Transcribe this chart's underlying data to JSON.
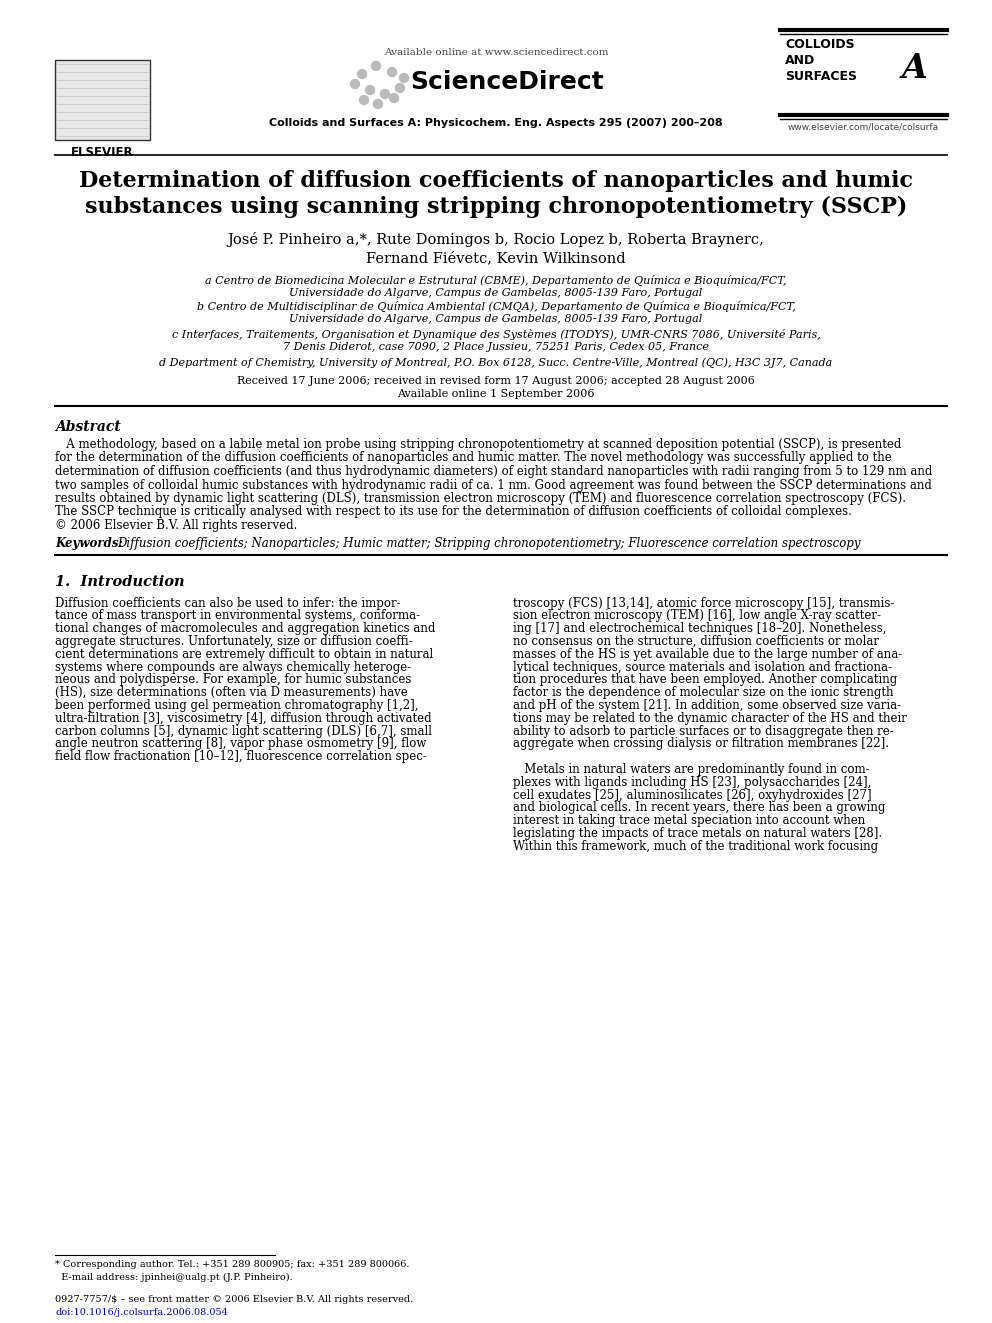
{
  "page_bg": "#ffffff",
  "header_available_online": "Available online at www.sciencedirect.com",
  "header_journal_line": "Colloids and Surfaces A: Physicochem. Eng. Aspects 295 (2007) 200–208",
  "header_colloids": "COLLOIDS\nAND\nSURFACES",
  "header_website": "www.elsevier.com/locate/colsurfa",
  "header_elsevier": "ELSEVIER",
  "title_line1": "Determination of diffusion coefficients of nanoparticles and humic",
  "title_line2": "substances using scanning stripping chronopotentiometry (SSCP)",
  "authors": "José P. Pinheiro a,*, Rute Domingos b, Rocio Lopez b, Roberta Braynerc,",
  "authors2": "Fernand Fiévetc, Kevin Wilkinsond",
  "affil_a": "a Centro de Biomedicina Molecular e Estrutural (CBME), Departamento de Química e Bioquímica/FCT,",
  "affil_a2": "Universidade do Algarve, Campus de Gambelas, 8005-139 Faro, Portugal",
  "affil_b": "b Centro de Multidisciplinar de Química Ambiental (CMQA), Departamento de Química e Bioquímica/FCT,",
  "affil_b2": "Universidade do Algarve, Campus de Gambelas, 8005-139 Faro, Portugal",
  "affil_c": "c Interfaces, Traitements, Organisation et Dynamique des Systèmes (ITODYS), UMR-CNRS 7086, Université Paris,",
  "affil_c2": "7 Denis Diderot, case 7090, 2 Place Jussieu, 75251 Paris, Cedex 05, France",
  "affil_d": "d Department of Chemistry, University of Montreal, P.O. Box 6128, Succ. Centre-Ville, Montreal (QC), H3C 3J7, Canada",
  "received_line": "Received 17 June 2006; received in revised form 17 August 2006; accepted 28 August 2006",
  "available_online": "Available online 1 September 2006",
  "abstract_title": "Abstract",
  "abstract_text": "   A methodology, based on a labile metal ion probe using stripping chronopotentiometry at scanned deposition potential (SSCP), is presented\nfor the determination of the diffusion coefficients of nanoparticles and humic matter. The novel methodology was successfully applied to the\ndetermination of diffusion coefficients (and thus hydrodynamic diameters) of eight standard nanoparticles with radii ranging from 5 to 129 nm and\ntwo samples of colloidal humic substances with hydrodynamic radii of ca. 1 nm. Good agreement was found between the SSCP determinations and\nresults obtained by dynamic light scattering (DLS), transmission electron microscopy (TEM) and fluorescence correlation spectroscopy (FCS).\nThe SSCP technique is critically analysed with respect to its use for the determination of diffusion coefficients of colloidal complexes.\n© 2006 Elsevier B.V. All rights reserved.",
  "keywords_label": "Keywords:",
  "keywords_text": "Diffusion coefficients; Nanoparticles; Humic matter; Stripping chronopotentiometry; Fluorescence correlation spectroscopy",
  "intro_title": "1.  Introduction",
  "intro_col1_lines": [
    "Diffusion coefficients can also be used to infer: the impor-",
    "tance of mass transport in environmental systems, conforma-",
    "tional changes of macromolecules and aggregation kinetics and",
    "aggregate structures. Unfortunately, size or diffusion coeffi-",
    "cient determinations are extremely difficult to obtain in natural",
    "systems where compounds are always chemically heteroge-",
    "neous and polydisperse. For example, for humic substances",
    "(HS), size determinations (often via D measurements) have",
    "been performed using gel permeation chromatography [1,2],",
    "ultra-filtration [3], viscosimetry [4], diffusion through activated",
    "carbon columns [5], dynamic light scattering (DLS) [6,7], small",
    "angle neutron scattering [8], vapor phase osmometry [9], flow",
    "field flow fractionation [10–12], fluorescence correlation spec-"
  ],
  "intro_col2_lines": [
    "troscopy (FCS) [13,14], atomic force microscopy [15], transmis-",
    "sion electron microscopy (TEM) [16], low angle X-ray scatter-",
    "ing [17] and electrochemical techniques [18–20]. Nonetheless,",
    "no consensus on the structure, diffusion coefficients or molar",
    "masses of the HS is yet available due to the large number of ana-",
    "lytical techniques, source materials and isolation and fractiona-",
    "tion procedures that have been employed. Another complicating",
    "factor is the dependence of molecular size on the ionic strength",
    "and pH of the system [21]. In addition, some observed size varia-",
    "tions may be related to the dynamic character of the HS and their",
    "ability to adsorb to particle surfaces or to disaggregate then re-",
    "aggregate when crossing dialysis or filtration membranes [22].",
    "",
    "   Metals in natural waters are predominantly found in com-",
    "plexes with ligands including HS [23], polysaccharides [24],",
    "cell exudates [25], aluminosilicates [26], oxyhydroxides [27]",
    "and biological cells. In recent years, there has been a growing",
    "interest in taking trace metal speciation into account when",
    "legislating the impacts of trace metals on natural waters [28].",
    "Within this framework, much of the traditional work focusing"
  ],
  "footer_star_line1": "* Corresponding author. Tel.: +351 289 800905; fax: +351 289 800066.",
  "footer_star_line2": "  E-mail address: jpinhei@ualg.pt (J.P. Pinheiro).",
  "footer_bottom1": "0927-7757/$ – see front matter © 2006 Elsevier B.V. All rights reserved.",
  "footer_bottom2": "doi:10.1016/j.colsurfa.2006.08.054",
  "link_color": "#0000cc"
}
